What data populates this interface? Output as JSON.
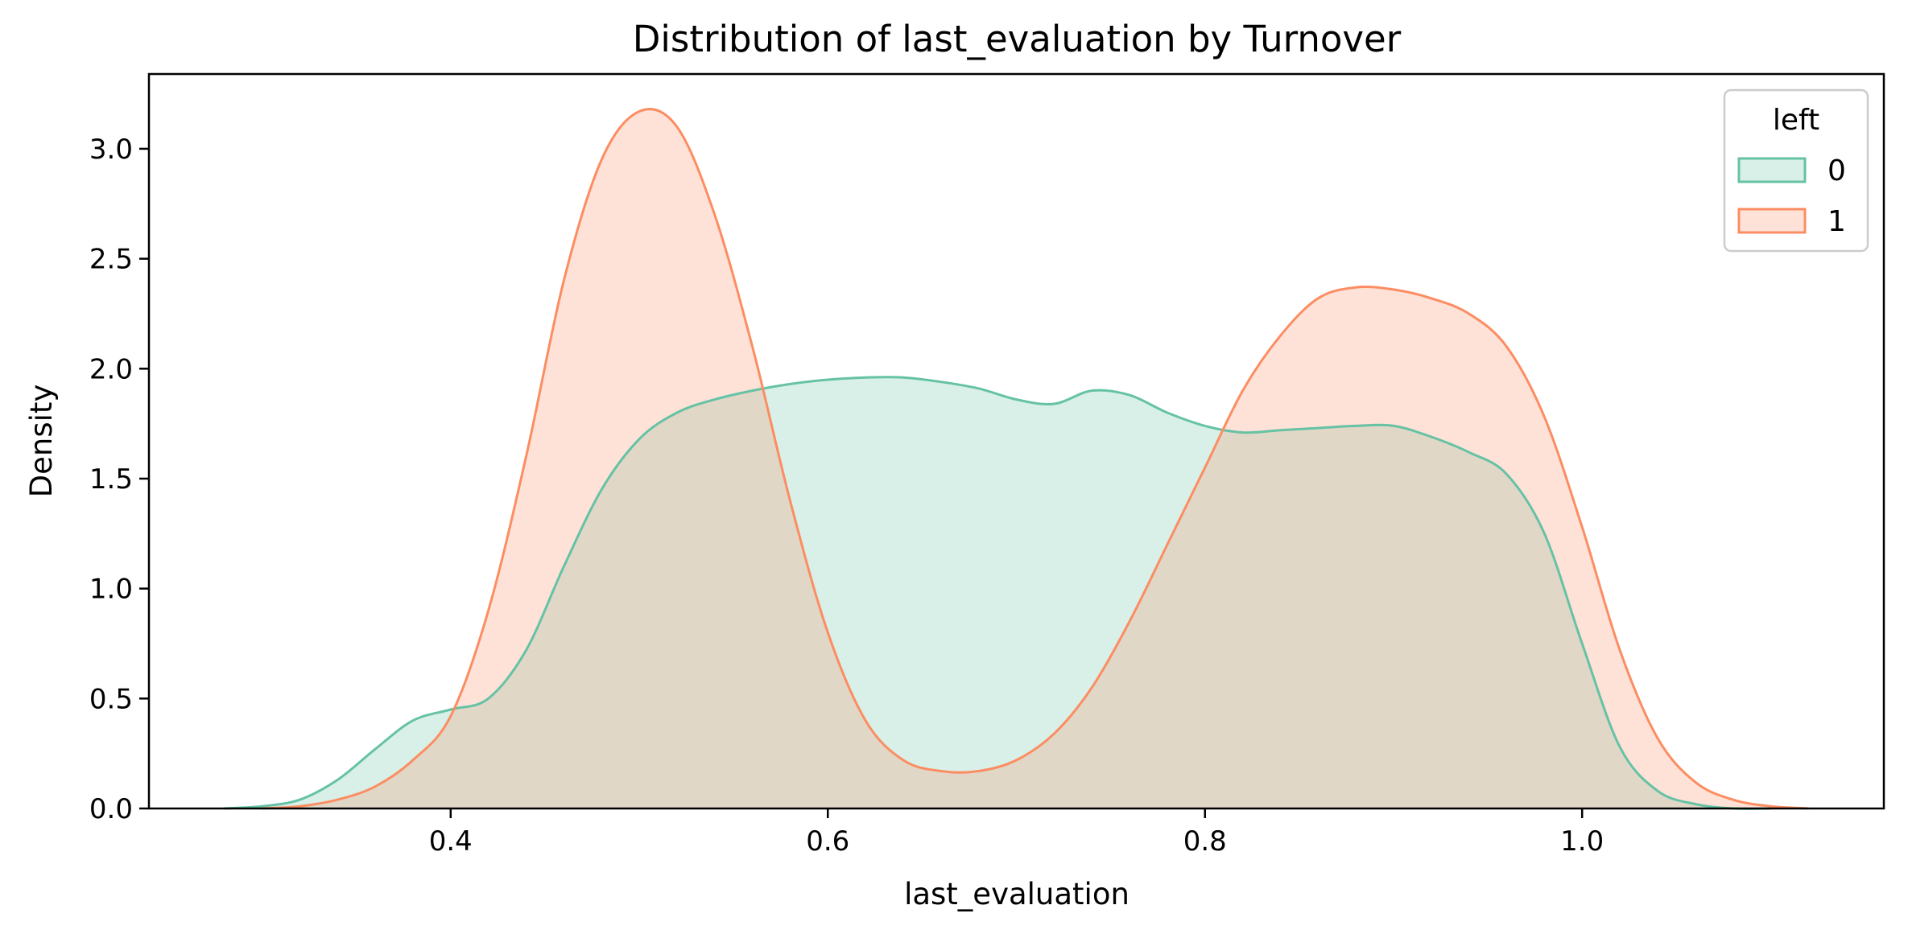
{
  "chart_data": {
    "type": "area",
    "title": "Distribution of last_evaluation by Turnover",
    "xlabel": "last_evaluation",
    "ylabel": "Density",
    "xlim": [
      0.24,
      1.16
    ],
    "ylim": [
      0,
      3.34
    ],
    "xticks": [
      "0.4",
      "0.6",
      "0.8",
      "1.0"
    ],
    "yticks": [
      "0.0",
      "0.5",
      "1.0",
      "1.5",
      "2.0",
      "2.5",
      "3.0"
    ],
    "grid": false,
    "legend": {
      "title": "left",
      "position": "top-right"
    },
    "series": [
      {
        "name": "0",
        "color": "#66c2a5",
        "x": [
          0.28,
          0.3,
          0.32,
          0.34,
          0.36,
          0.38,
          0.4,
          0.42,
          0.44,
          0.46,
          0.48,
          0.5,
          0.52,
          0.54,
          0.56,
          0.58,
          0.6,
          0.62,
          0.64,
          0.66,
          0.68,
          0.7,
          0.72,
          0.74,
          0.76,
          0.78,
          0.8,
          0.82,
          0.84,
          0.86,
          0.88,
          0.9,
          0.92,
          0.94,
          0.96,
          0.98,
          1.0,
          1.02,
          1.04,
          1.06,
          1.08,
          1.1
        ],
        "y": [
          0.0,
          0.01,
          0.04,
          0.13,
          0.27,
          0.4,
          0.45,
          0.5,
          0.72,
          1.1,
          1.45,
          1.68,
          1.8,
          1.86,
          1.9,
          1.93,
          1.95,
          1.96,
          1.96,
          1.94,
          1.91,
          1.86,
          1.84,
          1.9,
          1.88,
          1.8,
          1.74,
          1.71,
          1.72,
          1.73,
          1.74,
          1.74,
          1.69,
          1.62,
          1.52,
          1.25,
          0.75,
          0.28,
          0.08,
          0.02,
          0.0,
          0.0
        ]
      },
      {
        "name": "1",
        "color": "#fc8d62",
        "x": [
          0.3,
          0.32,
          0.34,
          0.36,
          0.38,
          0.4,
          0.42,
          0.44,
          0.46,
          0.48,
          0.5,
          0.52,
          0.54,
          0.56,
          0.58,
          0.6,
          0.62,
          0.64,
          0.66,
          0.68,
          0.7,
          0.72,
          0.74,
          0.76,
          0.78,
          0.8,
          0.82,
          0.84,
          0.86,
          0.88,
          0.9,
          0.92,
          0.94,
          0.96,
          0.98,
          1.0,
          1.02,
          1.04,
          1.06,
          1.08,
          1.1,
          1.12
        ],
        "y": [
          0.0,
          0.01,
          0.04,
          0.1,
          0.22,
          0.42,
          0.9,
          1.6,
          2.4,
          2.95,
          3.17,
          3.1,
          2.7,
          2.1,
          1.4,
          0.8,
          0.4,
          0.22,
          0.17,
          0.17,
          0.22,
          0.34,
          0.55,
          0.85,
          1.2,
          1.55,
          1.9,
          2.15,
          2.32,
          2.37,
          2.36,
          2.32,
          2.25,
          2.1,
          1.78,
          1.28,
          0.72,
          0.32,
          0.12,
          0.04,
          0.01,
          0.0
        ]
      }
    ]
  }
}
